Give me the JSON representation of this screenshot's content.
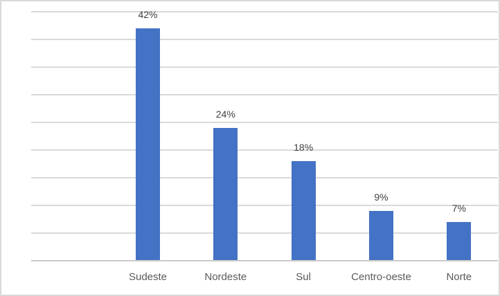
{
  "window": {
    "background": "#FFFFFF",
    "border_color": "#D9D9D9"
  },
  "chart_data": {
    "type": "bar",
    "categories": [
      "Sudeste",
      "Nordeste",
      "Sul",
      "Centro-oeste",
      "Norte"
    ],
    "values": [
      42,
      24,
      18,
      9,
      7
    ],
    "data_labels": [
      "42%",
      "24%",
      "18%",
      "9%",
      "7%"
    ],
    "title": "",
    "xlabel": "",
    "ylabel": "",
    "ylim": [
      0,
      45
    ],
    "gridline_step": 5,
    "grid": true,
    "y_axis_tick_labels_visible": false,
    "legend": "none",
    "leading_empty_categories": 1,
    "colors": {
      "bar": "#4472C4",
      "gridline": "#D9D9D9",
      "axis_line": "#C9C9C9",
      "data_label": "#404040",
      "category_label": "#595959"
    }
  }
}
